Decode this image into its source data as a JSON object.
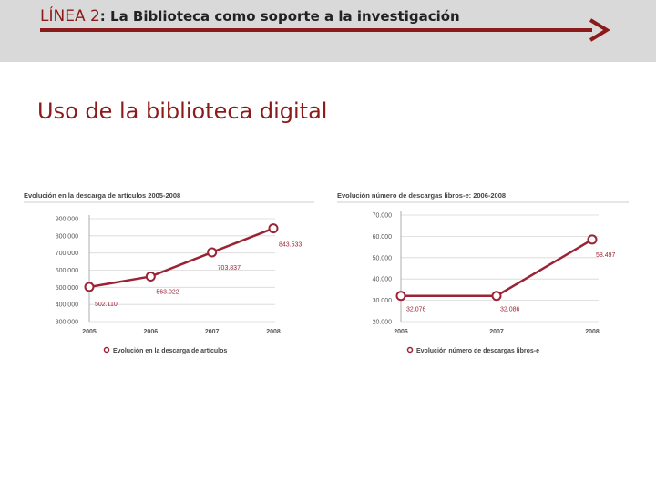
{
  "header": {
    "line_label": "LÍNEA 2",
    "subtitle": ": La Biblioteca como soporte a la investigación"
  },
  "section_title": "Uso de la biblioteca digital",
  "colors": {
    "accent": "#9b2335",
    "header_bg": "#d9d9d9",
    "arrow": "#8b1a1a"
  },
  "chart_data": [
    {
      "type": "line",
      "title": "Evolución en la descarga de artículos 2005-2008",
      "x": [
        "2005",
        "2006",
        "2007",
        "2008"
      ],
      "series": [
        {
          "name": "Evolución en la descarga de artículos",
          "values": [
            502110,
            563022,
            703837,
            843533
          ]
        }
      ],
      "data_labels": [
        "502.110",
        "563.022",
        "703.837",
        "843.533"
      ],
      "yticks": [
        "300.000",
        "400.000",
        "500.000",
        "600.000",
        "700.000",
        "800.000",
        "900.000"
      ],
      "ylim": [
        300000,
        900000
      ],
      "grid": true,
      "legend": "bottom"
    },
    {
      "type": "line",
      "title": "Evolución número de descargas libros-e: 2006-2008",
      "x": [
        "2006",
        "2007",
        "2008"
      ],
      "series": [
        {
          "name": "Evolución número de descargas libros-e",
          "values": [
            32076,
            32086,
            58497
          ]
        }
      ],
      "data_labels": [
        "32.076",
        "32.086",
        "58.497"
      ],
      "yticks": [
        "20.000",
        "30.000",
        "40.000",
        "50.000",
        "60.000",
        "70.000"
      ],
      "ylim": [
        20000,
        70000
      ],
      "grid": true,
      "legend": "bottom"
    }
  ]
}
